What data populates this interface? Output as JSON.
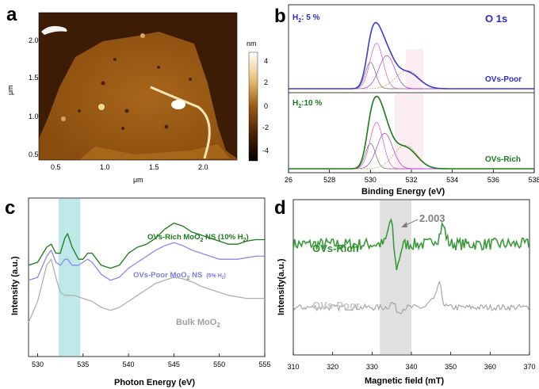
{
  "panels": {
    "a": {
      "label": "a",
      "x_unit": "μm",
      "y_unit": "μm",
      "x_ticks": [
        "0.5",
        "1.0",
        "1.5",
        "2.0"
      ],
      "y_ticks": [
        "2.0",
        "1.5",
        "1.0",
        "0.5"
      ],
      "colorbar_unit": "nm",
      "colorbar_ticks": [
        "4",
        "2",
        "0",
        "-2",
        "-4"
      ]
    },
    "b": {
      "label": "b",
      "title": "O 1s",
      "top_condition": "H",
      "top_condition_sub": "2",
      "top_condition_value": ": 5 %",
      "bottom_condition": "H",
      "bottom_condition_sub": "2",
      "bottom_condition_value": ":10 %",
      "top_sample": "OVs-Poor",
      "bottom_sample": "OVs-Rich",
      "xlabel": "Binding Energy (eV)",
      "x_ticks": [
        "26",
        "528",
        "530",
        "532",
        "534",
        "536",
        "538"
      ]
    },
    "c": {
      "label": "c",
      "xlabel": "Photon Energy (eV)",
      "ylabel": "Intensity (a.u.)",
      "x_ticks": [
        "530",
        "535",
        "540",
        "545",
        "550",
        "555"
      ],
      "rich_label": "OVs-Rich MoO",
      "rich_sub": "2",
      "rich_suffix": " NS (10% H",
      "rich_sub2": "2",
      "rich_close": ")",
      "poor_label": "OVs-Poor MoO",
      "poor_sub": "2",
      "poor_suffix": " NS",
      "poor_note": "(5% H",
      "poor_note_sub": "2",
      "poor_note_close": ")",
      "bulk_label": "Bulk MoO",
      "bulk_sub": "2"
    },
    "d": {
      "label": "d",
      "xlabel": "Magnetic field (mT)",
      "ylabel": "Intensity(a.u.)",
      "x_ticks": [
        "310",
        "320",
        "330",
        "340",
        "350",
        "360",
        "370"
      ],
      "g_value": "2.003",
      "rich_label": "OVs-Rich",
      "poor_label": "OVs-Poor"
    }
  },
  "colors": {
    "blue": "#3a3ad6",
    "green": "#1a7a1a",
    "rich_green": "#3a9a3a",
    "poor_gray": "#a0a0a0",
    "lightblue": "#8b8be8",
    "teal": "#bfe8e8",
    "afm_dark": "#3a1a05",
    "afm_mid": "#9a5a12"
  },
  "chart_data": [
    {
      "type": "heatmap",
      "title": "",
      "xlabel": "μm",
      "ylabel": "μm",
      "xlim": [
        0.3,
        2.3
      ],
      "ylim": [
        0.3,
        2.3
      ],
      "colorbar": {
        "label": "nm",
        "range": [
          -5,
          5
        ],
        "ticks": [
          -4,
          -2,
          0,
          2,
          4
        ]
      }
    },
    {
      "type": "line",
      "title": "O 1s",
      "xlabel": "Binding Energy (eV)",
      "ylabel": "",
      "xlim": [
        526,
        538
      ],
      "subplots": [
        {
          "condition": "H2: 5 %",
          "sample": "OVs-Poor",
          "peaks": [
            {
              "center": 530.0,
              "amplitude": 0.32
            },
            {
              "center": 530.3,
              "amplitude": 0.55
            },
            {
              "center": 530.8,
              "amplitude": 0.4
            },
            {
              "center": 531.8,
              "amplitude": 0.22
            }
          ],
          "shaded_range": [
            531.5,
            532.8
          ]
        },
        {
          "condition": "H2:10 %",
          "sample": "OVs-Rich",
          "peaks": [
            {
              "center": 530.0,
              "amplitude": 0.3
            },
            {
              "center": 530.3,
              "amplitude": 0.55
            },
            {
              "center": 530.7,
              "amplitude": 0.42
            },
            {
              "center": 531.7,
              "amplitude": 0.28
            }
          ],
          "shaded_range": [
            531.3,
            532.8
          ]
        }
      ]
    },
    {
      "type": "line",
      "title": "",
      "xlabel": "Photon Energy (eV)",
      "ylabel": "Intensity (a.u.)",
      "xlim": [
        529,
        555
      ],
      "highlight_range": [
        532.3,
        534.7
      ],
      "series": [
        {
          "name": "OVs-Rich MoO2 NS (10% H2)",
          "x": [
            529,
            530,
            531,
            531.5,
            532,
            532.5,
            533,
            533.3,
            533.8,
            534.5,
            535,
            535.5,
            536,
            537,
            538,
            539,
            540,
            541,
            542,
            543,
            544,
            545,
            546,
            547,
            548,
            549,
            550,
            551,
            552,
            553,
            554,
            555
          ],
          "values": [
            0.58,
            0.6,
            0.7,
            0.72,
            0.66,
            0.66,
            0.76,
            0.79,
            0.7,
            0.62,
            0.62,
            0.66,
            0.66,
            0.58,
            0.56,
            0.58,
            0.66,
            0.7,
            0.72,
            0.76,
            0.82,
            0.86,
            0.84,
            0.8,
            0.78,
            0.76,
            0.74,
            0.72,
            0.72,
            0.74,
            0.75,
            0.75
          ]
        },
        {
          "name": "OVs-Poor MoO2 NS (5% H2)",
          "x": [
            529,
            530,
            531,
            531.5,
            532,
            532.5,
            533,
            533.3,
            533.8,
            534.5,
            535,
            535.5,
            536,
            537,
            538,
            539,
            540,
            541,
            542,
            543,
            544,
            545,
            546,
            547,
            548,
            549,
            550,
            551,
            552,
            553,
            554,
            555
          ],
          "values": [
            0.48,
            0.5,
            0.64,
            0.68,
            0.6,
            0.58,
            0.62,
            0.62,
            0.58,
            0.58,
            0.6,
            0.62,
            0.6,
            0.52,
            0.48,
            0.5,
            0.56,
            0.6,
            0.64,
            0.68,
            0.71,
            0.73,
            0.71,
            0.68,
            0.66,
            0.64,
            0.62,
            0.62,
            0.62,
            0.63,
            0.64,
            0.64
          ]
        },
        {
          "name": "Bulk MoO2",
          "x": [
            529,
            530,
            531,
            531.5,
            532,
            532.5,
            533,
            534,
            535,
            536,
            537,
            538,
            539,
            540,
            541,
            542,
            543,
            544,
            545,
            546,
            547,
            548,
            549,
            550,
            551,
            552,
            553,
            554,
            555
          ],
          "values": [
            0.2,
            0.34,
            0.58,
            0.62,
            0.5,
            0.4,
            0.38,
            0.38,
            0.36,
            0.34,
            0.3,
            0.28,
            0.3,
            0.34,
            0.38,
            0.42,
            0.46,
            0.48,
            0.5,
            0.49,
            0.47,
            0.44,
            0.42,
            0.4,
            0.38,
            0.37,
            0.36,
            0.36,
            0.36
          ]
        }
      ]
    },
    {
      "type": "line",
      "title": "",
      "xlabel": "Magnetic field (mT)",
      "ylabel": "Intensity(a.u.)",
      "xlim": [
        310,
        370
      ],
      "highlight_range": [
        332,
        340
      ],
      "annotation": {
        "text": "2.003",
        "x": 336
      },
      "series": [
        {
          "name": "OVs-Rich",
          "baseline": 0.72,
          "noise": 0.04,
          "features": [
            {
              "x": 335.5,
              "amp": 0.25,
              "kind": "derivative"
            },
            {
              "x": 347.5,
              "amp": 0.12,
              "kind": "bump"
            }
          ]
        },
        {
          "name": "OVs-Poor",
          "baseline": 0.3,
          "noise": 0.02,
          "features": [
            {
              "x": 336,
              "amp": 0.05,
              "kind": "derivative"
            },
            {
              "x": 346.5,
              "amp": 0.15,
              "kind": "bump"
            }
          ]
        }
      ]
    }
  ]
}
